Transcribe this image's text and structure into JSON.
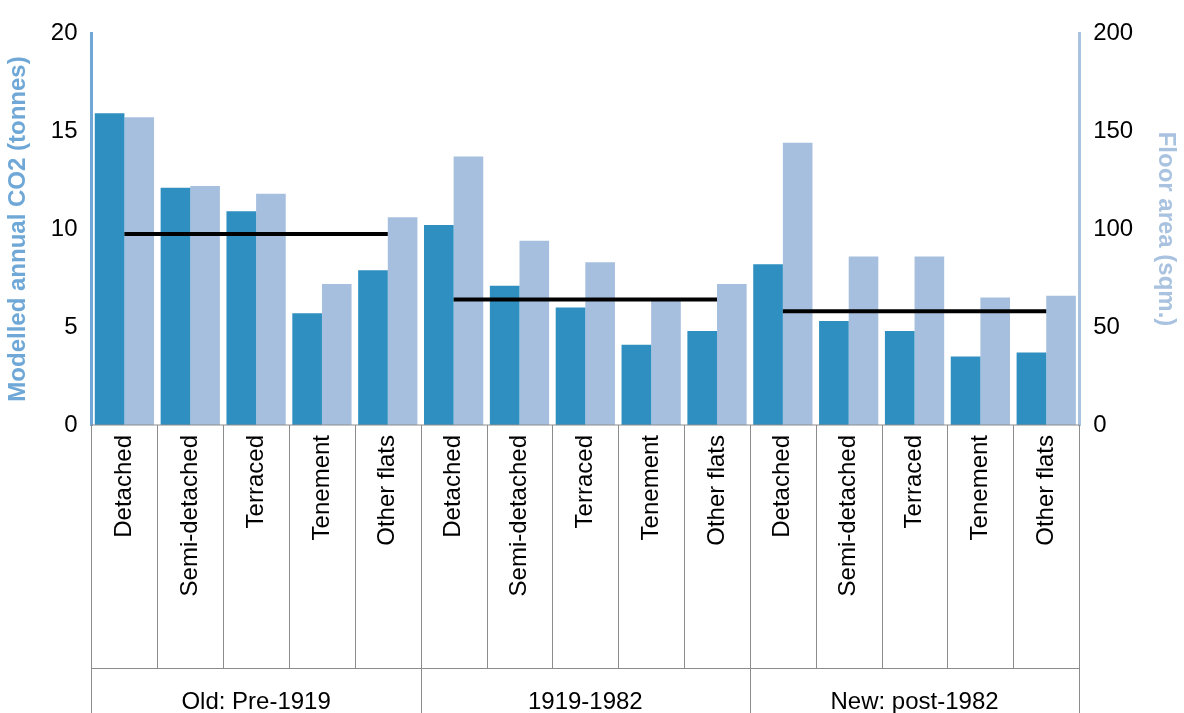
{
  "chart_data": {
    "type": "bar",
    "ylabel": "Modelled annual CO2 (tonnes)",
    "y2label": "Floor area (sqm.)",
    "categories": [
      "Detached",
      "Semi-detached",
      "Terraced",
      "Tenement",
      "Other flats",
      "Detached",
      "Semi-detached",
      "Terraced",
      "Tenement",
      "Other flats",
      "Detached",
      "Semi-detached",
      "Terraced",
      "Tenement",
      "Other flats"
    ],
    "series": [
      {
        "color": "#2e8fc0",
        "values": [
          15.9,
          12.1,
          10.9,
          5.7,
          7.9,
          10.2,
          7.1,
          6.0,
          4.1,
          4.8,
          8.2,
          5.3,
          4.8,
          3.5,
          3.7
        ]
      },
      {
        "color": "#a6bfde",
        "axis": "y2",
        "values": [
          157,
          122,
          118,
          72,
          106,
          137,
          94,
          83,
          64,
          72,
          144,
          86,
          86,
          65,
          66
        ]
      },
      {
        "type": "line",
        "color": "#000000",
        "values": [
          9.75,
          9.75,
          9.75,
          9.75,
          9.75,
          null,
          null,
          null,
          null,
          null,
          null,
          null,
          null,
          null,
          null
        ]
      },
      {
        "type": "line",
        "color": "#000000",
        "values": [
          null,
          null,
          null,
          null,
          null,
          6.4,
          6.4,
          6.4,
          6.4,
          6.4,
          null,
          null,
          null,
          null,
          null
        ]
      },
      {
        "type": "line",
        "color": "#000000",
        "values": [
          null,
          null,
          null,
          null,
          null,
          null,
          null,
          null,
          null,
          null,
          5.8,
          5.8,
          5.8,
          5.8,
          5.8
        ]
      }
    ],
    "ylim": [
      0,
      20
    ],
    "yticks": [
      0,
      5,
      10,
      15,
      20
    ],
    "y2lim": [
      0,
      200
    ],
    "y2ticks": [
      0,
      50,
      100,
      150,
      200
    ],
    "annotations": [
      "Old: Pre-1919",
      "1919-1982",
      "New: post-1982"
    ],
    "grid": false,
    "legend": false,
    "marker": "none"
  }
}
